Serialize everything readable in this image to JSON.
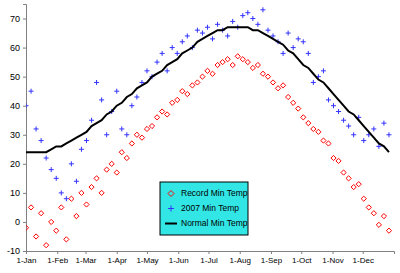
{
  "chart_data": {
    "type": "scatter",
    "x": [
      1,
      6,
      11,
      16,
      21,
      26,
      31,
      36,
      41,
      46,
      51,
      56,
      61,
      66,
      71,
      76,
      81,
      86,
      91,
      96,
      101,
      106,
      111,
      116,
      121,
      126,
      131,
      136,
      141,
      146,
      151,
      156,
      161,
      166,
      171,
      176,
      181,
      186,
      191,
      196,
      201,
      206,
      211,
      216,
      221,
      226,
      231,
      236,
      241,
      246,
      251,
      256,
      261,
      266,
      271,
      276,
      281,
      286,
      291,
      296,
      301,
      306,
      311,
      316,
      321,
      326,
      331,
      336,
      341,
      346,
      351,
      356,
      361
    ],
    "xlim": [
      1,
      366
    ],
    "xticks": [
      {
        "value": 1,
        "label": "1-Jan"
      },
      {
        "value": 32,
        "label": "1-Feb"
      },
      {
        "value": 60,
        "label": "1-Mar"
      },
      {
        "value": 91,
        "label": "1-Apr"
      },
      {
        "value": 121,
        "label": "1-May"
      },
      {
        "value": 152,
        "label": "1-Jun"
      },
      {
        "value": 182,
        "label": "1-Jul"
      },
      {
        "value": 213,
        "label": "1-Aug"
      },
      {
        "value": 244,
        "label": "1-Sep"
      },
      {
        "value": 274,
        "label": "1-Oct"
      },
      {
        "value": 305,
        "label": "1-Nov"
      },
      {
        "value": 335,
        "label": "1-Dec"
      }
    ],
    "ylim": [
      -10,
      75
    ],
    "yticks": [
      -10,
      0,
      10,
      20,
      30,
      40,
      50,
      60,
      70
    ],
    "grid": false,
    "legend": "lower center",
    "series": [
      {
        "name": "Record Min Temp",
        "color": "#ff0000",
        "marker": "diamond",
        "values": [
          -2,
          5,
          -5,
          3,
          -8,
          0,
          -3,
          5,
          -6,
          8,
          2,
          10,
          6,
          12,
          15,
          10,
          18,
          20,
          17,
          24,
          22,
          27,
          30,
          29,
          32,
          33,
          36,
          38,
          37,
          41,
          42,
          45,
          44,
          47,
          48,
          50,
          52,
          51,
          54,
          55,
          56,
          54,
          57,
          56,
          55,
          53,
          54,
          51,
          50,
          48,
          46,
          47,
          43,
          41,
          39,
          36,
          34,
          32,
          31,
          28,
          27,
          22,
          21,
          17,
          15,
          12,
          13,
          8,
          5,
          3,
          -1,
          2,
          -3
        ]
      },
      {
        "name": "2007 Min Temp",
        "color": "#3333ff",
        "marker": "plus",
        "values": [
          40,
          45,
          32,
          28,
          22,
          18,
          15,
          10,
          8,
          20,
          14,
          25,
          28,
          35,
          48,
          42,
          30,
          38,
          45,
          32,
          30,
          40,
          43,
          48,
          52,
          50,
          55,
          58,
          52,
          60,
          58,
          62,
          64,
          60,
          66,
          65,
          67,
          63,
          68,
          66,
          64,
          69,
          67,
          71,
          72,
          70,
          68,
          73,
          66,
          64,
          62,
          58,
          65,
          60,
          63,
          62,
          58,
          48,
          50,
          52,
          42,
          40,
          38,
          35,
          33,
          30,
          36,
          28,
          30,
          32,
          26,
          34,
          30
        ]
      },
      {
        "name": "Normal Min Temp",
        "color": "#000000",
        "type": "line",
        "line_style": "solid",
        "values": [
          24,
          24,
          24,
          24,
          24,
          25,
          26,
          26,
          27,
          28,
          29,
          30,
          31,
          33,
          34,
          35,
          37,
          38,
          40,
          41,
          43,
          44,
          46,
          47,
          48,
          50,
          51,
          52,
          54,
          55,
          56,
          58,
          59,
          60,
          62,
          63,
          64,
          65,
          66,
          66,
          67,
          67,
          67,
          67,
          67,
          66,
          66,
          65,
          64,
          63,
          62,
          61,
          59,
          58,
          56,
          54,
          53,
          51,
          49,
          48,
          46,
          44,
          42,
          40,
          38,
          37,
          35,
          33,
          31,
          29,
          27,
          26,
          24
        ]
      }
    ]
  }
}
